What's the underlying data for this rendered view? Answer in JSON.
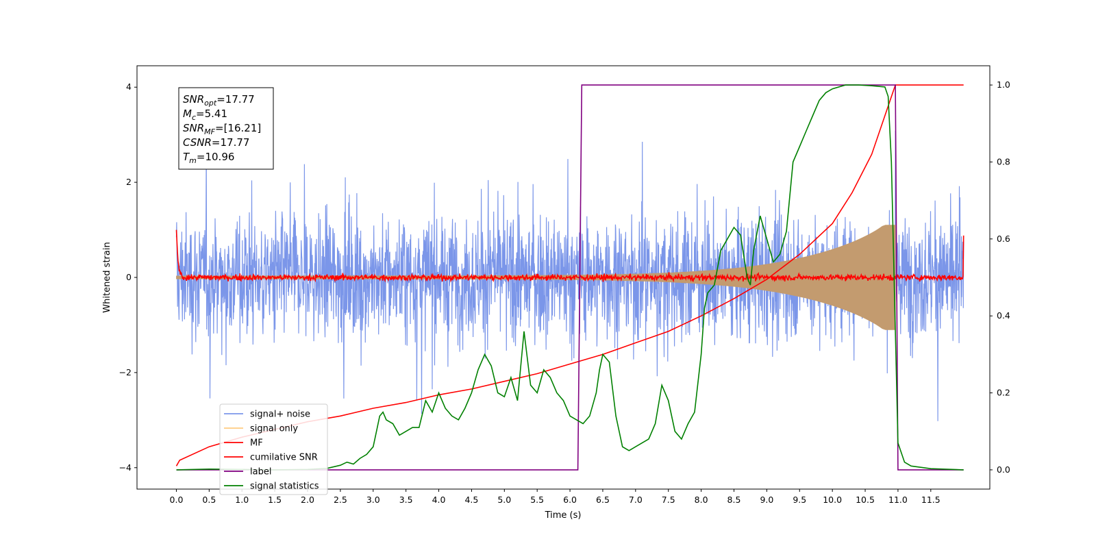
{
  "chart_data": {
    "type": "line",
    "title": "",
    "xlabel": "Time (s)",
    "ylabel": "Whitened strain",
    "xlim": [
      -0.6,
      12.4
    ],
    "ylim": [
      -4.45,
      4.45
    ],
    "y2lim": [
      -0.05,
      1.05
    ],
    "x_ticks": [
      0.0,
      0.5,
      1.0,
      1.5,
      2.0,
      2.5,
      3.0,
      3.5,
      4.0,
      4.5,
      5.0,
      5.5,
      6.0,
      6.5,
      7.0,
      7.5,
      8.0,
      8.5,
      9.0,
      9.5,
      10.0,
      10.5,
      11.0,
      11.5
    ],
    "x_tick_labels": [
      "0.0",
      "0.5",
      "1.0",
      "1.5",
      "2.0",
      "2.5",
      "3.0",
      "3.5",
      "4.0",
      "4.5",
      "5.0",
      "5.5",
      "6.0",
      "6.5",
      "7.0",
      "7.5",
      "8.0",
      "8.5",
      "9.0",
      "9.5",
      "10.0",
      "10.5",
      "11.0",
      "11.5"
    ],
    "y_ticks": [
      -4,
      -2,
      0,
      2,
      4
    ],
    "y_tick_labels": [
      "−4",
      "−2",
      "0",
      "2",
      "4"
    ],
    "y2_ticks": [
      0.0,
      0.2,
      0.4,
      0.6,
      0.8,
      1.0
    ],
    "y2_tick_labels": [
      "0.0",
      "0.2",
      "0.4",
      "0.6",
      "0.8",
      "1.0"
    ],
    "grid": false,
    "legend_position": "bottom-left",
    "annotation_lines": [
      {
        "sym": "SNR",
        "sub": "opt",
        "value": "=17.77"
      },
      {
        "sym": "M",
        "sub": "c",
        "value": "=5.41"
      },
      {
        "sym": "SNR",
        "sub": "MF",
        "value": "=[16.21]"
      },
      {
        "sym": "CSNR",
        "sub": "",
        "value": "=17.77"
      },
      {
        "sym": "T",
        "sub": "m",
        "value": "=10.96"
      }
    ],
    "series": [
      {
        "name": "signal+ noise",
        "color": "#7b96e9",
        "axis": "left",
        "t_range": [
          0.0,
          12.0
        ],
        "envelope": 1.7,
        "peak": 4.0
      },
      {
        "name": "signal only",
        "color": "#c39b6f",
        "legend_color": "#ffcc80",
        "axis": "left",
        "t_range": [
          0.0,
          10.96
        ],
        "chirp_amp_start": 0.03,
        "chirp_amp_end": 1.1
      },
      {
        "name": "MF",
        "color": "#ff0000",
        "axis": "left",
        "t_range": [
          0.0,
          12.0
        ],
        "level": 0.0,
        "start_value": 1.0,
        "end_value": 0.88
      },
      {
        "name": "cumilative SNR",
        "color": "#ff0000",
        "axis": "right",
        "x": [
          0.0,
          0.05,
          0.5,
          1.0,
          1.5,
          2.0,
          2.5,
          3.0,
          3.5,
          4.0,
          4.5,
          5.0,
          5.5,
          6.0,
          6.5,
          7.0,
          7.5,
          8.0,
          8.5,
          9.0,
          9.5,
          10.0,
          10.3,
          10.6,
          10.8,
          10.96,
          12.0
        ],
        "y": [
          0.01,
          0.025,
          0.06,
          0.085,
          0.105,
          0.125,
          0.14,
          0.16,
          0.175,
          0.195,
          0.21,
          0.23,
          0.25,
          0.275,
          0.3,
          0.33,
          0.36,
          0.4,
          0.445,
          0.495,
          0.56,
          0.64,
          0.72,
          0.82,
          0.92,
          1.0,
          1.0
        ]
      },
      {
        "name": "label",
        "color": "#800080",
        "axis": "right",
        "x": [
          0.0,
          6.12,
          6.18,
          10.96,
          11.0,
          12.0
        ],
        "y": [
          0.0,
          0.0,
          1.0,
          1.0,
          0.0,
          0.0
        ]
      },
      {
        "name": "signal statistics",
        "color": "#008000",
        "axis": "right",
        "x": [
          0.0,
          0.5,
          1.0,
          1.5,
          2.0,
          2.3,
          2.5,
          2.6,
          2.7,
          2.8,
          2.9,
          3.0,
          3.05,
          3.1,
          3.15,
          3.2,
          3.3,
          3.4,
          3.5,
          3.6,
          3.7,
          3.8,
          3.9,
          4.0,
          4.1,
          4.2,
          4.3,
          4.4,
          4.5,
          4.6,
          4.7,
          4.8,
          4.9,
          5.0,
          5.1,
          5.2,
          5.3,
          5.4,
          5.5,
          5.6,
          5.7,
          5.8,
          5.9,
          6.0,
          6.1,
          6.2,
          6.3,
          6.4,
          6.45,
          6.5,
          6.6,
          6.7,
          6.8,
          6.9,
          7.0,
          7.1,
          7.2,
          7.3,
          7.4,
          7.5,
          7.6,
          7.7,
          7.8,
          7.9,
          8.0,
          8.05,
          8.1,
          8.2,
          8.3,
          8.4,
          8.5,
          8.6,
          8.7,
          8.75,
          8.8,
          8.9,
          9.0,
          9.1,
          9.2,
          9.3,
          9.4,
          9.5,
          9.6,
          9.7,
          9.8,
          9.9,
          10.0,
          10.2,
          10.4,
          10.6,
          10.8,
          10.85,
          10.9,
          11.0,
          11.1,
          11.2,
          11.5,
          12.0
        ],
        "y": [
          0.0,
          0.002,
          0.001,
          0.0,
          0.001,
          0.004,
          0.012,
          0.02,
          0.015,
          0.03,
          0.04,
          0.06,
          0.1,
          0.14,
          0.15,
          0.13,
          0.12,
          0.09,
          0.1,
          0.11,
          0.11,
          0.18,
          0.15,
          0.2,
          0.16,
          0.14,
          0.13,
          0.16,
          0.2,
          0.26,
          0.3,
          0.27,
          0.2,
          0.19,
          0.24,
          0.18,
          0.36,
          0.22,
          0.2,
          0.26,
          0.24,
          0.2,
          0.18,
          0.14,
          0.13,
          0.12,
          0.14,
          0.2,
          0.26,
          0.3,
          0.28,
          0.14,
          0.06,
          0.05,
          0.06,
          0.07,
          0.08,
          0.12,
          0.22,
          0.18,
          0.1,
          0.08,
          0.12,
          0.15,
          0.3,
          0.42,
          0.46,
          0.48,
          0.57,
          0.6,
          0.63,
          0.61,
          0.5,
          0.48,
          0.57,
          0.66,
          0.6,
          0.54,
          0.56,
          0.62,
          0.8,
          0.84,
          0.88,
          0.92,
          0.96,
          0.98,
          0.99,
          1.0,
          1.0,
          0.998,
          0.995,
          0.97,
          0.8,
          0.07,
          0.02,
          0.01,
          0.003,
          0.0
        ]
      }
    ]
  }
}
